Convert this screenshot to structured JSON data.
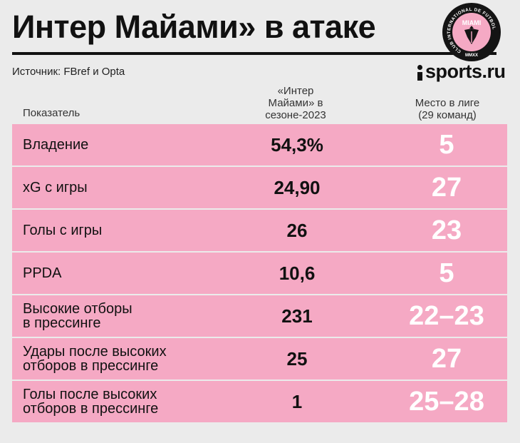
{
  "title": "Интер Майами» в атаке",
  "source": "Источник: FBref  и Opta",
  "brand": "sports.ru",
  "logo": {
    "ring_text": "CLUB INTERNATIONAL DE FUTBOL",
    "name": "MIAMI",
    "year": "MMXX",
    "colors": {
      "ring": "#141414",
      "fill": "#f5a9c4",
      "text": "#ffffff"
    }
  },
  "headers": {
    "metric": "Показатель",
    "value_line1": "«Интер",
    "value_line2": "Майами» в",
    "value_line3": "сезоне-2023",
    "rank_line1": "Место в лиге",
    "rank_line2": "(29 команд)"
  },
  "rows": [
    {
      "metric_line1": "Владение",
      "metric_line2": "",
      "value": "54,3%",
      "rank": "5"
    },
    {
      "metric_line1": "xG с игры",
      "metric_line2": "",
      "value": "24,90",
      "rank": "27"
    },
    {
      "metric_line1": "Голы с игры",
      "metric_line2": "",
      "value": "26",
      "rank": "23"
    },
    {
      "metric_line1": "PPDA",
      "metric_line2": "",
      "value": "10,6",
      "rank": "5"
    },
    {
      "metric_line1": "Высокие отборы",
      "metric_line2": "в прессинге",
      "value": "231",
      "rank": "22–23"
    },
    {
      "metric_line1": "Удары после высоких",
      "metric_line2": "отборов в прессинге",
      "value": "25",
      "rank": "27"
    },
    {
      "metric_line1": "Голы после высоких",
      "metric_line2": "отборов в прессинге",
      "value": "1",
      "rank": "25–28"
    }
  ],
  "colors": {
    "row_bg": "#f5a9c4",
    "rank_text": "#ffffff",
    "background": "#ebebeb"
  }
}
